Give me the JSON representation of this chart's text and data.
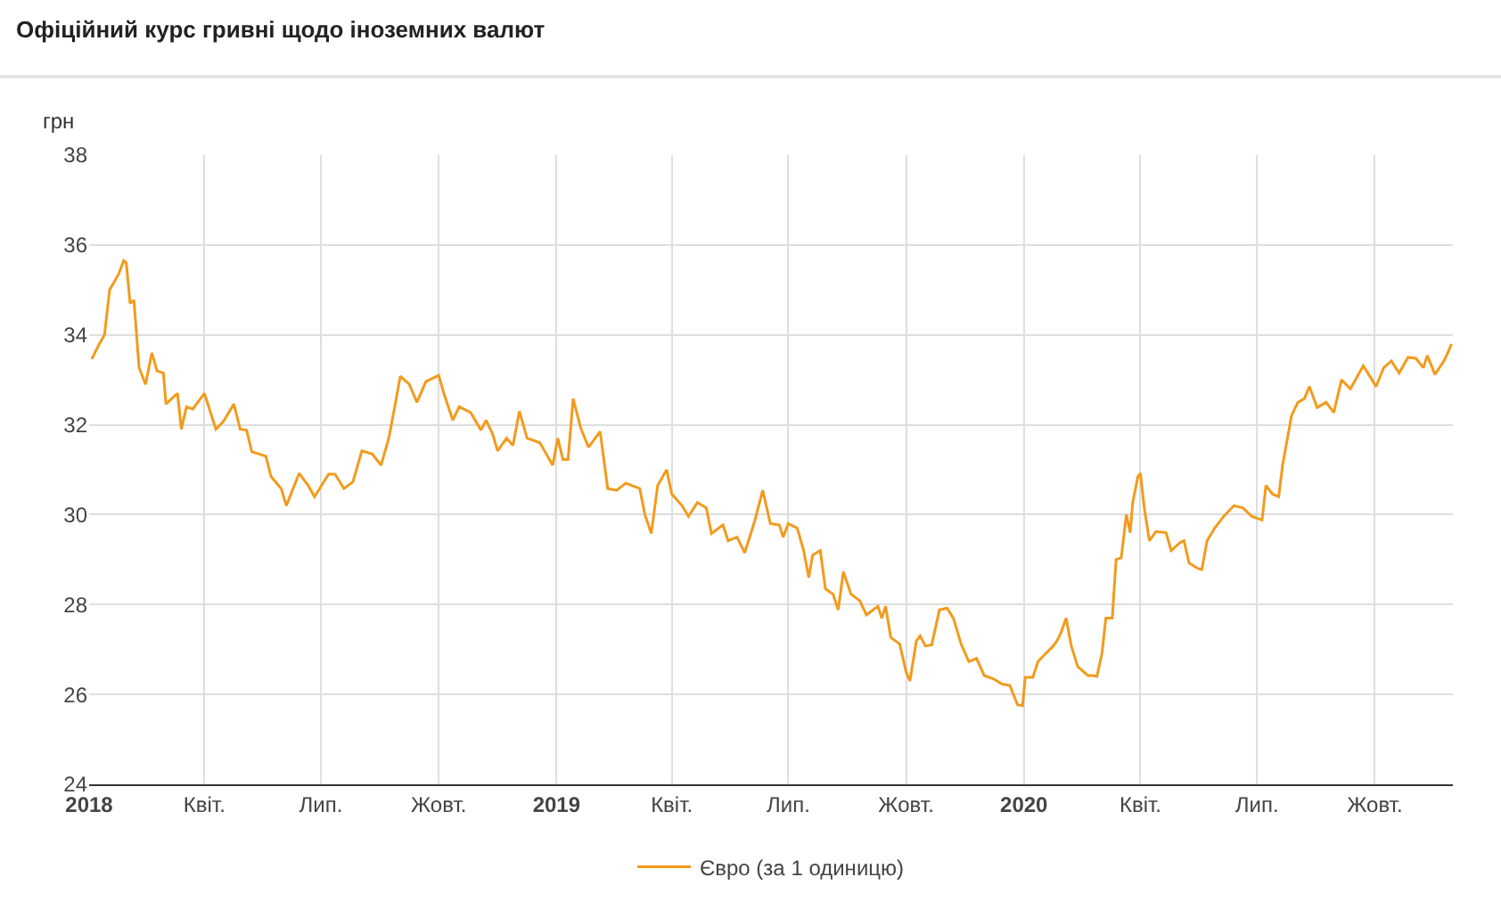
{
  "chart_data": {
    "type": "line",
    "title": "Офіційний курс гривні щодо іноземних валют",
    "ylabel": "грн",
    "x": [
      "2018-01-03",
      "2018-01-09",
      "2018-01-13",
      "2018-01-17",
      "2018-01-24",
      "2018-01-28",
      "2018-01-30",
      "2018-02-02",
      "2018-02-05",
      "2018-02-09",
      "2018-02-14",
      "2018-02-19",
      "2018-02-23",
      "2018-02-28",
      "2018-03-02",
      "2018-03-11",
      "2018-03-14",
      "2018-03-18",
      "2018-03-23",
      "2018-04-01",
      "2018-04-10",
      "2018-04-16",
      "2018-04-24",
      "2018-04-29",
      "2018-05-04",
      "2018-05-08",
      "2018-05-19",
      "2018-05-23",
      "2018-05-31",
      "2018-06-04",
      "2018-06-14",
      "2018-06-21",
      "2018-06-26",
      "2018-06-30",
      "2018-07-07",
      "2018-07-12",
      "2018-07-19",
      "2018-07-26",
      "2018-08-02",
      "2018-08-10",
      "2018-08-17",
      "2018-08-23",
      "2018-08-27",
      "2018-09-01",
      "2018-09-08",
      "2018-09-14",
      "2018-09-21",
      "2018-10-01",
      "2018-10-05",
      "2018-10-12",
      "2018-10-17",
      "2018-10-26",
      "2018-11-03",
      "2018-11-07",
      "2018-11-12",
      "2018-11-16",
      "2018-11-23",
      "2018-11-28",
      "2018-12-03",
      "2018-12-09",
      "2018-12-19",
      "2018-12-25",
      "2018-12-29",
      "2019-01-02",
      "2019-01-06",
      "2019-01-10",
      "2019-01-14",
      "2019-01-20",
      "2019-01-26",
      "2019-02-04",
      "2019-02-10",
      "2019-02-17",
      "2019-02-24",
      "2019-03-07",
      "2019-03-11",
      "2019-03-16",
      "2019-03-21",
      "2019-03-28",
      "2019-04-01",
      "2019-04-09",
      "2019-04-14",
      "2019-04-21",
      "2019-04-28",
      "2019-05-02",
      "2019-05-11",
      "2019-05-15",
      "2019-05-22",
      "2019-05-28",
      "2019-06-05",
      "2019-06-11",
      "2019-06-17",
      "2019-06-24",
      "2019-06-27",
      "2019-07-01",
      "2019-07-08",
      "2019-07-13",
      "2019-07-17",
      "2019-07-20",
      "2019-07-26",
      "2019-07-30",
      "2019-08-05",
      "2019-08-09",
      "2019-08-13",
      "2019-08-19",
      "2019-08-26",
      "2019-08-31",
      "2019-09-09",
      "2019-09-12",
      "2019-09-15",
      "2019-09-19",
      "2019-09-26",
      "2019-10-01",
      "2019-10-04",
      "2019-10-09",
      "2019-10-12",
      "2019-10-16",
      "2019-10-21",
      "2019-10-27",
      "2019-11-02",
      "2019-11-07",
      "2019-11-13",
      "2019-11-19",
      "2019-11-25",
      "2019-12-01",
      "2019-12-08",
      "2019-12-15",
      "2019-12-21",
      "2019-12-27",
      "2019-12-31",
      "2020-01-02",
      "2020-01-08",
      "2020-01-12",
      "2020-01-17",
      "2020-01-24",
      "2020-01-27",
      "2020-01-30",
      "2020-02-03",
      "2020-02-07",
      "2020-02-12",
      "2020-02-20",
      "2020-02-24",
      "2020-02-27",
      "2020-03-02",
      "2020-03-05",
      "2020-03-10",
      "2020-03-13",
      "2020-03-17",
      "2020-03-21",
      "2020-03-24",
      "2020-03-26",
      "2020-03-30",
      "2020-04-01",
      "2020-04-04",
      "2020-04-08",
      "2020-04-13",
      "2020-04-21",
      "2020-04-25",
      "2020-05-02",
      "2020-05-05",
      "2020-05-09",
      "2020-05-16",
      "2020-05-19",
      "2020-05-23",
      "2020-05-29",
      "2020-06-05",
      "2020-06-13",
      "2020-06-20",
      "2020-06-27",
      "2020-07-05",
      "2020-07-08",
      "2020-07-13",
      "2020-07-18",
      "2020-07-21",
      "2020-07-28",
      "2020-08-02",
      "2020-08-07",
      "2020-08-11",
      "2020-08-17",
      "2020-08-24",
      "2020-08-30",
      "2020-09-05",
      "2020-09-12",
      "2020-09-22",
      "2020-09-28",
      "2020-10-02",
      "2020-10-08",
      "2020-10-14",
      "2020-10-20",
      "2020-10-27",
      "2020-11-02",
      "2020-11-08",
      "2020-11-11",
      "2020-11-17",
      "2020-11-24",
      "2020-11-27",
      "2020-11-30"
    ],
    "series": [
      {
        "name": "Євро (за 1 одиницю)",
        "color": "#f29b1d",
        "values": [
          33.46,
          33.8,
          34.0,
          35.0,
          35.35,
          35.65,
          35.6,
          34.7,
          34.77,
          33.27,
          32.9,
          33.6,
          33.2,
          33.15,
          32.46,
          32.7,
          31.9,
          32.4,
          32.35,
          32.7,
          31.9,
          32.08,
          32.46,
          31.9,
          31.88,
          31.4,
          31.3,
          30.85,
          30.58,
          30.2,
          30.92,
          30.65,
          30.4,
          30.58,
          30.9,
          30.9,
          30.58,
          30.73,
          31.42,
          31.35,
          31.1,
          31.7,
          32.3,
          33.08,
          32.9,
          32.5,
          32.96,
          33.1,
          32.7,
          32.1,
          32.4,
          32.27,
          31.88,
          32.1,
          31.8,
          31.42,
          31.7,
          31.54,
          32.3,
          31.7,
          31.6,
          31.3,
          31.1,
          31.7,
          31.23,
          31.23,
          32.58,
          31.92,
          31.5,
          31.85,
          30.58,
          30.54,
          30.7,
          30.58,
          30.0,
          29.58,
          30.65,
          31.0,
          30.46,
          30.2,
          29.96,
          30.27,
          30.15,
          29.58,
          29.77,
          29.42,
          29.5,
          29.15,
          29.88,
          30.54,
          29.8,
          29.77,
          29.5,
          29.8,
          29.7,
          29.2,
          28.6,
          29.1,
          29.2,
          28.35,
          28.23,
          27.88,
          28.73,
          28.23,
          28.08,
          27.77,
          27.96,
          27.7,
          27.96,
          27.27,
          27.12,
          26.5,
          26.3,
          27.19,
          27.3,
          27.08,
          27.1,
          27.88,
          27.92,
          27.69,
          27.12,
          26.73,
          26.8,
          26.42,
          26.35,
          26.23,
          26.2,
          25.77,
          25.75,
          26.38,
          26.38,
          26.73,
          26.88,
          27.08,
          27.2,
          27.38,
          27.7,
          27.08,
          26.62,
          26.42,
          26.42,
          26.4,
          26.92,
          27.7,
          27.7,
          29.0,
          29.04,
          30.0,
          29.6,
          30.27,
          30.85,
          30.92,
          30.15,
          29.42,
          29.62,
          29.6,
          29.2,
          29.38,
          29.42,
          28.92,
          28.8,
          28.78,
          29.42,
          29.7,
          29.96,
          30.2,
          30.15,
          29.96,
          29.88,
          30.65,
          30.46,
          30.4,
          31.1,
          32.2,
          32.5,
          32.58,
          32.85,
          32.38,
          32.5,
          32.27,
          33.0,
          32.8,
          33.31,
          33.04,
          32.85,
          33.27,
          33.42,
          33.15,
          33.5,
          33.48,
          33.27,
          33.54,
          33.12,
          33.42,
          33.6,
          33.8
        ]
      }
    ],
    "xlim": [
      "2018-01-01",
      "2020-12-01"
    ],
    "xticks": [
      {
        "value": "2018-01-01",
        "label": "2018"
      },
      {
        "value": "2018-04-01",
        "label": "Квіт."
      },
      {
        "value": "2018-07-01",
        "label": "Лип."
      },
      {
        "value": "2018-10-01",
        "label": "Жовт."
      },
      {
        "value": "2019-01-01",
        "label": "2019"
      },
      {
        "value": "2019-04-01",
        "label": "Квіт."
      },
      {
        "value": "2019-07-01",
        "label": "Лип."
      },
      {
        "value": "2019-10-01",
        "label": "Жовт."
      },
      {
        "value": "2020-01-01",
        "label": "2020"
      },
      {
        "value": "2020-04-01",
        "label": "Квіт."
      },
      {
        "value": "2020-07-01",
        "label": "Лип."
      },
      {
        "value": "2020-10-01",
        "label": "Жовт."
      }
    ],
    "ylim": [
      24,
      38
    ],
    "yticks": [
      24,
      26,
      28,
      30,
      32,
      34,
      36,
      38
    ],
    "grid": true,
    "legend": "bottom",
    "marker": "none",
    "line_style": "solid"
  }
}
